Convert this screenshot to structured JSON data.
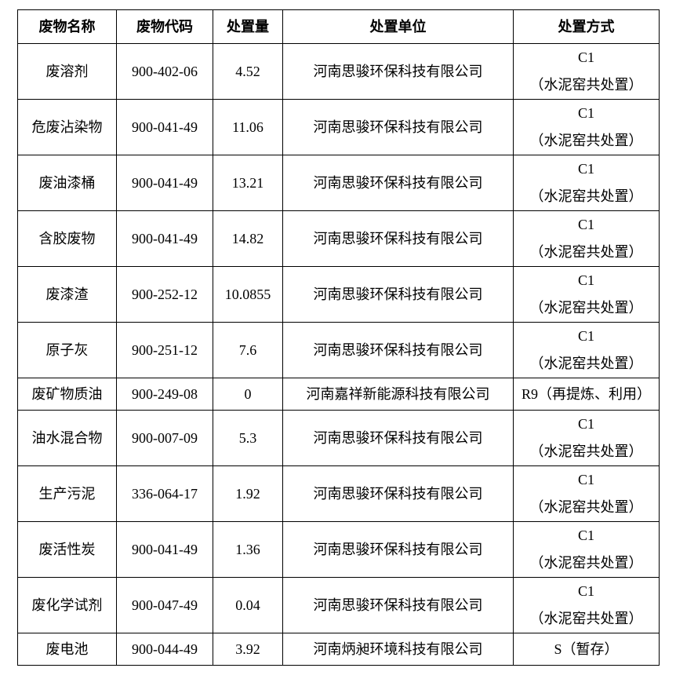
{
  "table": {
    "headers": [
      "废物名称",
      "废物代码",
      "处置量",
      "处置单位",
      "处置方式"
    ],
    "rows": [
      {
        "name": "废溶剂",
        "code": "900-402-06",
        "amount": "4.52",
        "unit": "河南思骏环保科技有限公司",
        "method": "C1",
        "method_note": "（水泥窑共处置）"
      },
      {
        "name": "危废沾染物",
        "code": "900-041-49",
        "amount": "11.06",
        "unit": "河南思骏环保科技有限公司",
        "method": "C1",
        "method_note": "（水泥窑共处置）"
      },
      {
        "name": "废油漆桶",
        "code": "900-041-49",
        "amount": "13.21",
        "unit": "河南思骏环保科技有限公司",
        "method": "C1",
        "method_note": "（水泥窑共处置）"
      },
      {
        "name": "含胶废物",
        "code": "900-041-49",
        "amount": "14.82",
        "unit": "河南思骏环保科技有限公司",
        "method": "C1",
        "method_note": "（水泥窑共处置）"
      },
      {
        "name": "废漆渣",
        "code": "900-252-12",
        "amount": "10.0855",
        "unit": "河南思骏环保科技有限公司",
        "method": "C1",
        "method_note": "（水泥窑共处置）"
      },
      {
        "name": "原子灰",
        "code": "900-251-12",
        "amount": "7.6",
        "unit": "河南思骏环保科技有限公司",
        "method": "C1",
        "method_note": "（水泥窑共处置）"
      },
      {
        "name": "废矿物质油",
        "code": "900-249-08",
        "amount": "0",
        "unit": "河南嘉祥新能源科技有限公司",
        "method": "R9（再提炼、利用）",
        "method_note": ""
      },
      {
        "name": "油水混合物",
        "code": "900-007-09",
        "amount": "5.3",
        "unit": "河南思骏环保科技有限公司",
        "method": "C1",
        "method_note": "（水泥窑共处置）"
      },
      {
        "name": "生产污泥",
        "code": "336-064-17",
        "amount": "1.92",
        "unit": "河南思骏环保科技有限公司",
        "method": "C1",
        "method_note": "（水泥窑共处置）"
      },
      {
        "name": "废活性炭",
        "code": "900-041-49",
        "amount": "1.36",
        "unit": "河南思骏环保科技有限公司",
        "method": "C1",
        "method_note": "（水泥窑共处置）"
      },
      {
        "name": "废化学试剂",
        "code": "900-047-49",
        "amount": "0.04",
        "unit": "河南思骏环保科技有限公司",
        "method": "C1",
        "method_note": "（水泥窑共处置）"
      },
      {
        "name": "废电池",
        "code": "900-044-49",
        "amount": "3.92",
        "unit": "河南炳昶环境科技有限公司",
        "method": "S（暂存）",
        "method_note": ""
      }
    ]
  }
}
